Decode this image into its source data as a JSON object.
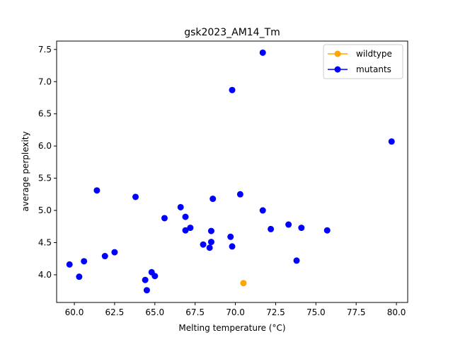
{
  "chart_data": {
    "type": "scatter",
    "title": "gsk2023_AM14_Tm",
    "xlabel": "Melting temperature (°C)",
    "ylabel": "average perplexity",
    "xlim": [
      58.9,
      80.7
    ],
    "ylim": [
      3.57,
      7.63
    ],
    "xticks": [
      60.0,
      62.5,
      65.0,
      67.5,
      70.0,
      72.5,
      75.0,
      77.5,
      80.0
    ],
    "xtick_labels": [
      "60.0",
      "62.5",
      "65.0",
      "67.5",
      "70.0",
      "72.5",
      "75.0",
      "77.5",
      "80.0"
    ],
    "yticks": [
      4.0,
      4.5,
      5.0,
      5.5,
      6.0,
      6.5,
      7.0,
      7.5
    ],
    "ytick_labels": [
      "4.0",
      "4.5",
      "5.0",
      "5.5",
      "6.0",
      "6.5",
      "7.0",
      "7.5"
    ],
    "grid": false,
    "legend_position": "top-right",
    "series": [
      {
        "name": "wildtype",
        "color": "#ffa500",
        "points": [
          [
            70.5,
            3.87
          ]
        ]
      },
      {
        "name": "mutants",
        "color": "#0000ff",
        "points": [
          [
            59.7,
            4.16
          ],
          [
            60.3,
            3.97
          ],
          [
            60.6,
            4.21
          ],
          [
            61.4,
            5.31
          ],
          [
            61.9,
            4.29
          ],
          [
            62.5,
            4.35
          ],
          [
            63.8,
            5.21
          ],
          [
            64.4,
            3.92
          ],
          [
            64.5,
            3.76
          ],
          [
            64.8,
            4.04
          ],
          [
            65.0,
            3.98
          ],
          [
            65.6,
            4.88
          ],
          [
            66.6,
            5.05
          ],
          [
            66.9,
            4.9
          ],
          [
            66.9,
            4.69
          ],
          [
            67.2,
            4.73
          ],
          [
            68.0,
            4.47
          ],
          [
            68.4,
            4.42
          ],
          [
            68.5,
            4.51
          ],
          [
            68.5,
            4.68
          ],
          [
            68.6,
            5.18
          ],
          [
            69.7,
            4.59
          ],
          [
            69.8,
            4.44
          ],
          [
            69.8,
            6.87
          ],
          [
            70.3,
            5.25
          ],
          [
            71.7,
            5.0
          ],
          [
            71.7,
            7.45
          ],
          [
            72.2,
            4.71
          ],
          [
            73.3,
            4.78
          ],
          [
            73.8,
            4.22
          ],
          [
            74.1,
            4.73
          ],
          [
            75.7,
            4.69
          ],
          [
            79.7,
            6.07
          ]
        ]
      }
    ]
  }
}
